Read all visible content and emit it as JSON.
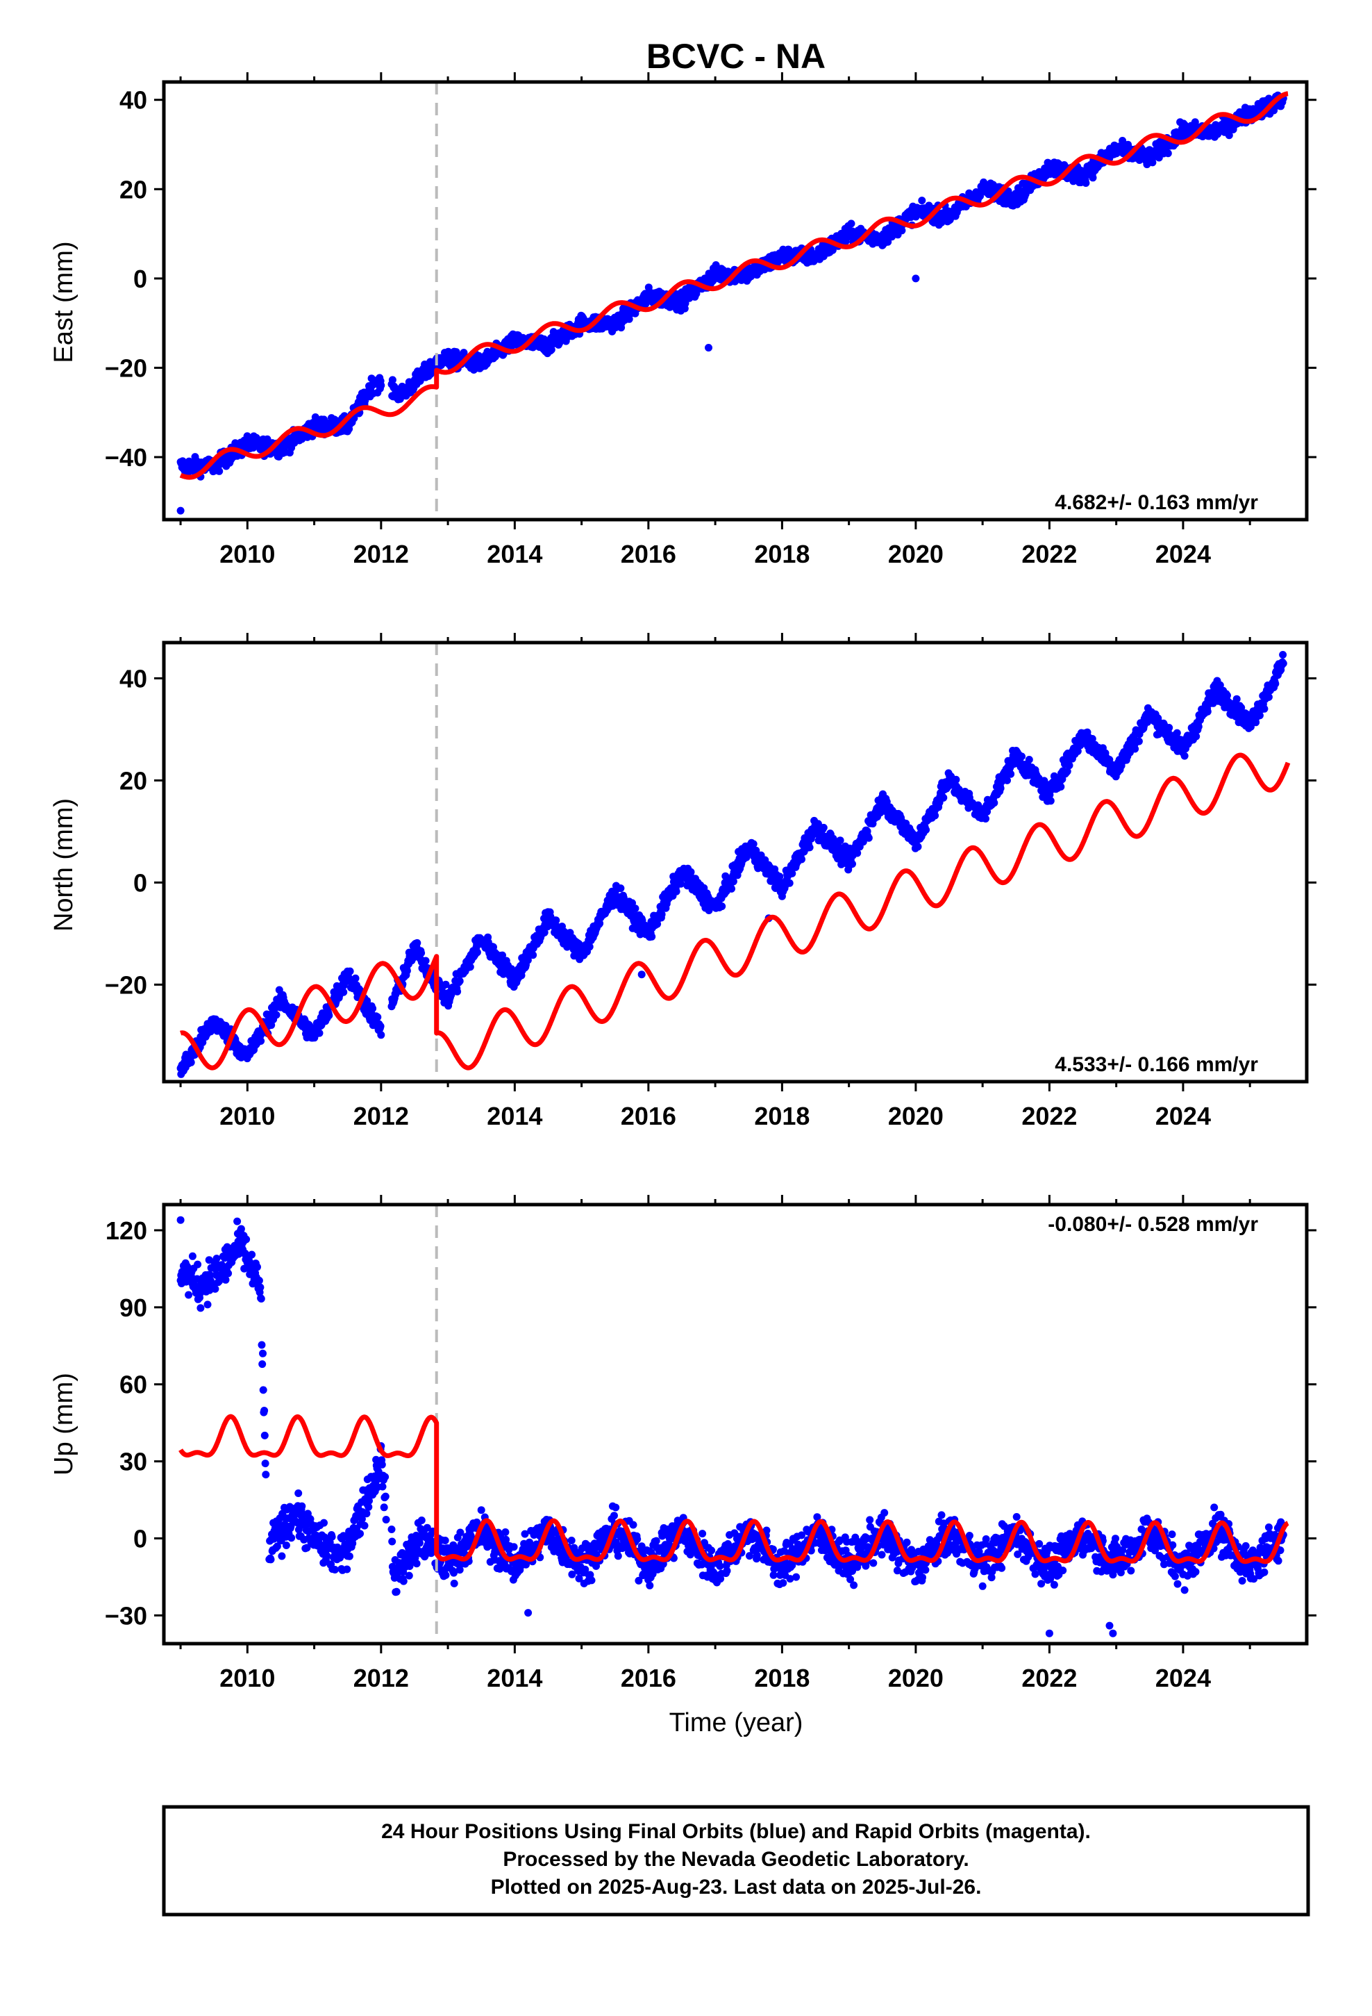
{
  "chart_data": {
    "type": "scatter",
    "title": "BCVC - NA",
    "xlabel": "Time (year)",
    "xlim": [
      2008.75,
      2025.85
    ],
    "xticks": [
      2010,
      2012,
      2014,
      2016,
      2018,
      2020,
      2022,
      2024
    ],
    "xtick_labels": [
      "2010",
      "2012",
      "2014",
      "2016",
      "2018",
      "2020",
      "2022",
      "2024"
    ],
    "event_line_x": 2012.83,
    "colors": {
      "data": "#0000ff",
      "model": "#ff0000",
      "event_line": "#bbbbbb",
      "frame": "#000000"
    },
    "legend_text": "",
    "panels": [
      {
        "name": "east",
        "ylabel": "East (mm)",
        "ylim": [
          -54,
          44
        ],
        "yticks": [
          -40,
          -20,
          0,
          20,
          40
        ],
        "ytick_labels": [
          "−40",
          "−20",
          "0",
          "20",
          "40"
        ],
        "rate_text": "4.682+/- 0.163 mm/yr",
        "rate_position": "bottom-right",
        "model": {
          "segments": [
            {
              "start": 2009.0,
              "end": 2012.83,
              "base": -43.5,
              "slope": 4.682,
              "amp": 1.8,
              "phase": 0.3
            },
            {
              "start": 2012.83,
              "end": 2025.57,
              "base": -20.0,
              "slope": 4.682,
              "amp": 1.8,
              "phase": 0.3
            }
          ]
        },
        "series_samples": {
          "x": [
            2009.0,
            2009.5,
            2010.0,
            2010.5,
            2011.0,
            2011.5,
            2011.9,
            2012.3,
            2012.9,
            2013.5,
            2014.0,
            2014.5,
            2015.0,
            2015.5,
            2016.0,
            2016.5,
            2017.0,
            2017.5,
            2018.0,
            2018.5,
            2019.0,
            2019.5,
            2020.0,
            2020.5,
            2021.0,
            2021.5,
            2022.0,
            2022.5,
            2023.0,
            2023.5,
            2024.0,
            2024.5,
            2025.0,
            2025.5
          ],
          "y": [
            -42,
            -42,
            -37,
            -38,
            -33,
            -33,
            -23,
            -26,
            -18,
            -19,
            -14,
            -15,
            -10,
            -10,
            -4,
            -5,
            1,
            1,
            5,
            5,
            10,
            9,
            15,
            14,
            20,
            18,
            25,
            23,
            29,
            27,
            33,
            33,
            37,
            40
          ]
        },
        "outliers": {
          "x": [
            2009.0,
            2016.9,
            2020.0
          ],
          "y": [
            -52,
            -15.5,
            0
          ]
        }
      },
      {
        "name": "north",
        "ylabel": "North (mm)",
        "ylim": [
          -39,
          47
        ],
        "yticks": [
          -20,
          0,
          20,
          40
        ],
        "ytick_labels": [
          "−20",
          "0",
          "20",
          "40"
        ],
        "rate_text": "4.533+/- 0.166 mm/yr",
        "rate_position": "bottom-right",
        "model": {
          "segments": [
            {
              "start": 2009.0,
              "end": 2012.83,
              "base": -34.0,
              "slope": 4.533,
              "amp": 4.5,
              "phase": 0.0
            },
            {
              "start": 2012.83,
              "end": 2025.57,
              "base": -34.0,
              "slope": 4.533,
              "amp": 4.5,
              "phase": 0.0
            }
          ]
        },
        "series_samples": {
          "x": [
            2009.0,
            2009.5,
            2010.0,
            2010.5,
            2011.0,
            2011.5,
            2012.0,
            2012.5,
            2013.0,
            2013.5,
            2014.0,
            2014.5,
            2015.0,
            2015.5,
            2016.0,
            2016.5,
            2017.0,
            2017.5,
            2018.0,
            2018.5,
            2019.0,
            2019.5,
            2020.0,
            2020.5,
            2021.0,
            2021.5,
            2022.0,
            2022.5,
            2023.0,
            2023.5,
            2024.0,
            2024.5,
            2025.0,
            2025.5
          ],
          "y": [
            -37,
            -27,
            -34,
            -23,
            -30,
            -18,
            -29,
            -13,
            -23,
            -11,
            -19,
            -7,
            -14,
            -2,
            -10,
            2,
            -5,
            7,
            -1,
            11,
            4,
            16,
            8,
            20,
            13,
            25,
            17,
            29,
            22,
            33,
            26,
            38,
            31,
            43
          ]
        },
        "outliers": {
          "x": [
            2017.8,
            2015.9
          ],
          "y": [
            -7,
            -18
          ]
        }
      },
      {
        "name": "up",
        "ylabel": "Up (mm)",
        "ylim": [
          -41,
          130
        ],
        "yticks": [
          -30,
          0,
          30,
          60,
          90,
          120
        ],
        "ytick_labels": [
          "−30",
          "0",
          "30",
          "60",
          "90",
          "120"
        ],
        "rate_text": "-0.080+/- 0.528 mm/yr",
        "rate_position": "top-right",
        "model": {
          "segments": [
            {
              "start": 2009.0,
              "end": 2012.83,
              "base": 37.5,
              "slope": -0.08,
              "amp": 7.0,
              "phase": 0.25,
              "harm2": 3.0
            },
            {
              "start": 2012.83,
              "end": 2025.57,
              "base": -3.0,
              "slope": -0.08,
              "amp": 7.0,
              "phase": 0.25,
              "harm2": 3.0
            }
          ]
        },
        "series_samples": {
          "x": [
            2009.0,
            2009.3,
            2009.6,
            2009.9,
            2010.2,
            2010.3,
            2010.7,
            2011.0,
            2011.4,
            2011.7,
            2012.0,
            2012.2,
            2012.6,
            2013.0,
            2013.5,
            2014.0,
            2014.5,
            2015.0,
            2015.5,
            2016.0,
            2016.5,
            2017.0,
            2017.5,
            2018.0,
            2018.5,
            2019.0,
            2019.5,
            2020.0,
            2020.5,
            2021.0,
            2021.5,
            2022.0,
            2022.5,
            2023.0,
            2023.5,
            2024.0,
            2024.5,
            2025.0,
            2025.5
          ],
          "y": [
            105,
            98,
            104,
            115,
            96,
            -5,
            10,
            0,
            -8,
            10,
            30,
            -15,
            0,
            -10,
            3,
            -10,
            3,
            -10,
            3,
            -10,
            3,
            -12,
            3,
            -12,
            2,
            -10,
            2,
            -12,
            2,
            -10,
            2,
            -12,
            2,
            -10,
            3,
            -12,
            4,
            -12,
            3
          ]
        },
        "outliers": {
          "x": [
            2009.0,
            2014.2,
            2022.0,
            2022.9,
            2022.95
          ],
          "y": [
            124,
            -29,
            -37,
            -34,
            -37
          ]
        }
      }
    ]
  },
  "footer": {
    "line1": "24 Hour Positions Using Final Orbits (blue) and Rapid Orbits (magenta).",
    "line2": "Processed by the Nevada Geodetic Laboratory.",
    "line3": "Plotted on 2025-Aug-23. Last data on 2025-Jul-26."
  }
}
